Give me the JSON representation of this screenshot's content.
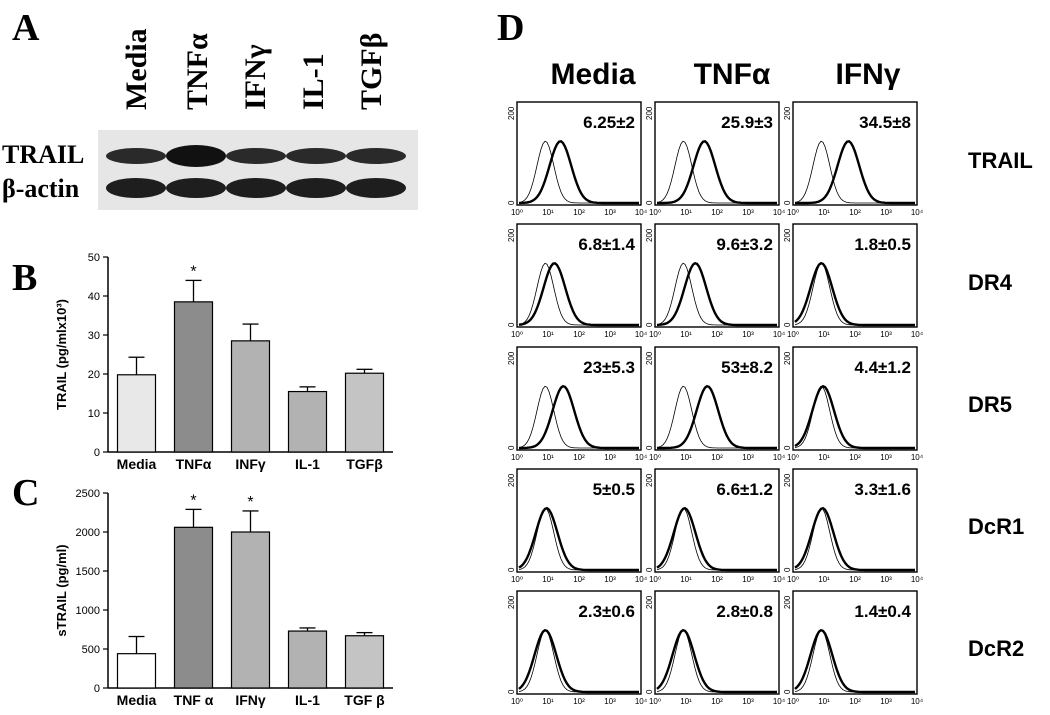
{
  "panel_letters": {
    "a": "A",
    "b": "B",
    "c": "C",
    "d": "D"
  },
  "blot": {
    "lanes": [
      "Media",
      "TNFα",
      "IFNγ",
      "IL-1",
      "TGFβ"
    ],
    "rows": [
      "TRAIL",
      "β-actin"
    ]
  },
  "chart_data": [
    {
      "panel": "B",
      "type": "bar",
      "categories": [
        "Media",
        "TNFα",
        "INFγ",
        "IL-1",
        "TGFβ"
      ],
      "values": [
        19.8,
        38.5,
        28.5,
        15.5,
        20.2
      ],
      "errors": [
        4.5,
        5.5,
        4.3,
        1.2,
        1.0
      ],
      "significance": [
        "",
        "*",
        "",
        "",
        ""
      ],
      "colors": [
        "#e8e8e8",
        "#8c8c8c",
        "#b2b2b2",
        "#b2b2b2",
        "#c4c4c4"
      ],
      "ylabel": "TRAIL (pg/mlx10³)",
      "ylim": [
        0,
        50
      ],
      "yticks": [
        0,
        10,
        20,
        30,
        40,
        50
      ]
    },
    {
      "panel": "C",
      "type": "bar",
      "categories": [
        "Media",
        "TNF α",
        "IFNγ",
        "IL-1",
        "TGF β"
      ],
      "values": [
        440,
        2060,
        2000,
        730,
        670
      ],
      "errors": [
        220,
        230,
        270,
        40,
        40
      ],
      "significance": [
        "",
        "*",
        "*",
        "",
        ""
      ],
      "colors": [
        "#ffffff",
        "#8c8c8c",
        "#b2b2b2",
        "#b2b2b2",
        "#c4c4c4"
      ],
      "ylabel": "sTRAIL (pg/ml)",
      "ylim": [
        0,
        2500
      ],
      "yticks": [
        0,
        500,
        1000,
        1500,
        2000,
        2500
      ]
    }
  ],
  "flow": {
    "columns": [
      "Media",
      "TNFα",
      "IFNγ"
    ],
    "rows": [
      "TRAIL",
      "DR4",
      "DR5",
      "DcR1",
      "DcR2"
    ],
    "values": [
      [
        "6.25±2",
        "25.9±3",
        "34.5±8"
      ],
      [
        "6.8±1.4",
        "9.6±3.2",
        "1.8±0.5"
      ],
      [
        "23±5.3",
        "53±8.2",
        "4.4±1.2"
      ],
      [
        "5±0.5",
        "6.6±1.2",
        "3.3±1.6"
      ],
      [
        "2.3±0.6",
        "2.8±0.8",
        "1.4±0.4"
      ]
    ],
    "shift": [
      [
        0.25,
        0.35,
        0.45
      ],
      [
        0.15,
        0.2,
        0.0
      ],
      [
        0.3,
        0.4,
        0.03
      ],
      [
        0.02,
        0.02,
        0.02
      ],
      [
        0.0,
        0.0,
        0.0
      ]
    ],
    "y_axis_ticks": [
      "0",
      "200"
    ],
    "x_axis_ticks": [
      "10⁰",
      "10¹",
      "10²",
      "10³",
      "10⁴"
    ]
  }
}
